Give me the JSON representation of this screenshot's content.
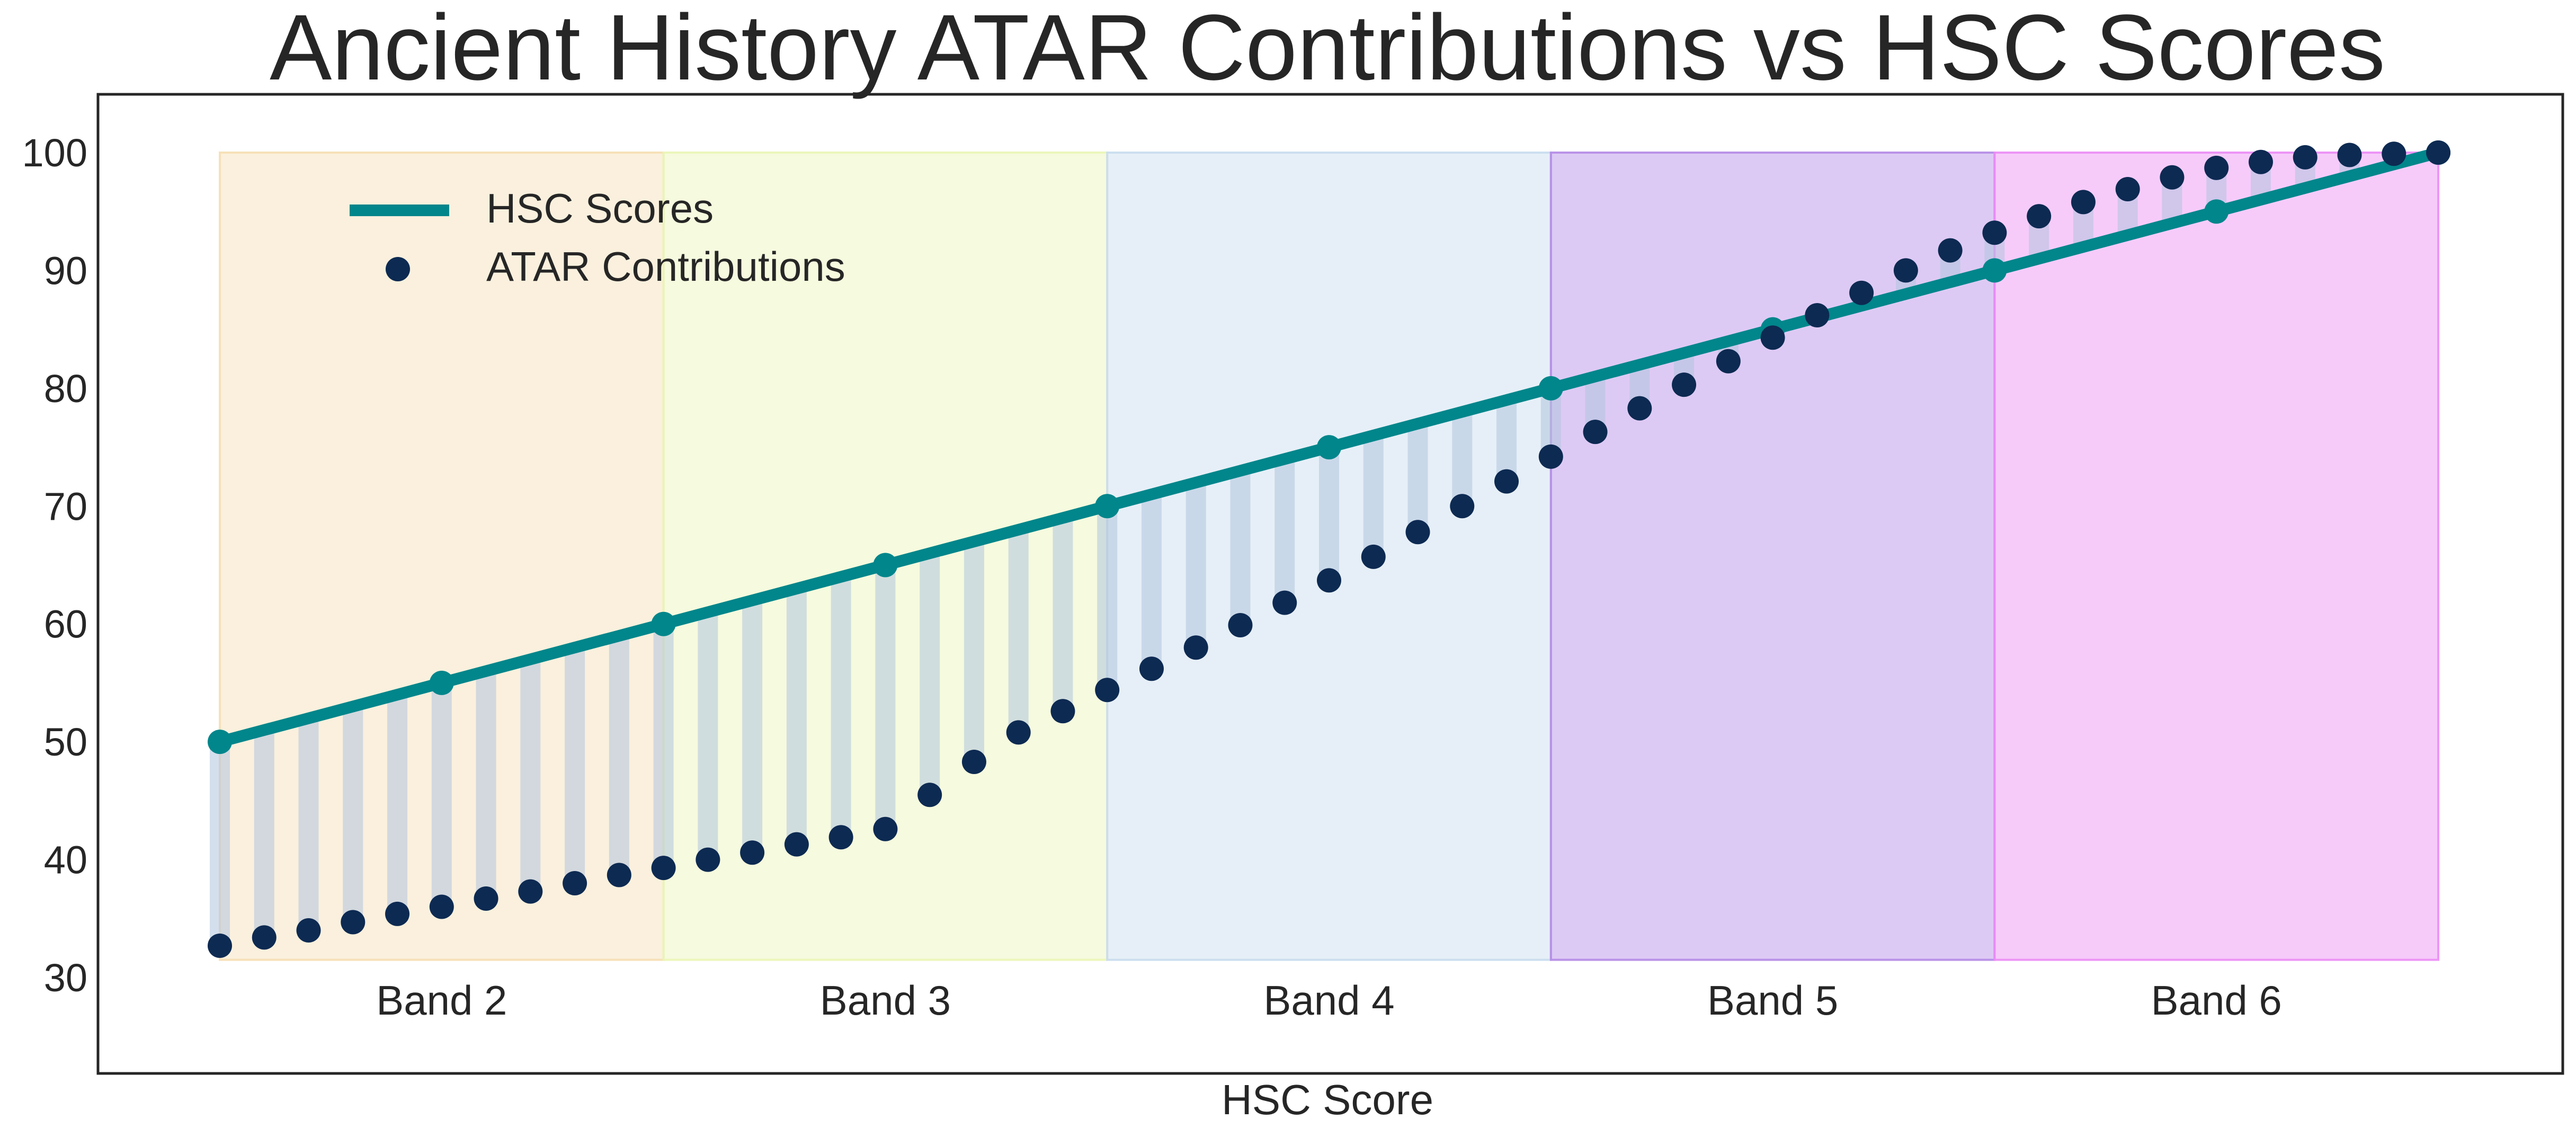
{
  "chart_data": {
    "type": "line",
    "title": "Ancient History ATAR Contributions vs HSC Scores",
    "xlabel": "HSC Score",
    "ylabel": "",
    "ylim": [
      22,
      105
    ],
    "yticks": [
      30,
      40,
      50,
      60,
      70,
      80,
      90,
      100
    ],
    "grid": false,
    "legend_position": "top-left",
    "bands": [
      {
        "label": "Band 2",
        "from": 50,
        "to": 60,
        "color": "#f5deb3"
      },
      {
        "label": "Band 3",
        "from": 60,
        "to": 70,
        "color": "#eaf5b5"
      },
      {
        "label": "Band 4",
        "from": 70,
        "to": 80,
        "color": "#c8dcee"
      },
      {
        "label": "Band 5",
        "from": 80,
        "to": 90,
        "color": "#b48ae6"
      },
      {
        "label": "Band 6",
        "from": 90,
        "to": 100,
        "color": "#ec8cf5"
      }
    ],
    "series": [
      {
        "name": "HSC Scores",
        "style": "line-with-markers",
        "color": "#00868b",
        "x": [
          50,
          55,
          60,
          65,
          70,
          75,
          80,
          85,
          90,
          95,
          100
        ],
        "values": [
          50,
          55,
          60,
          65,
          70,
          75,
          80,
          85,
          90,
          95,
          100
        ]
      },
      {
        "name": "ATAR Contributions",
        "style": "scatter",
        "color": "#0d2a52",
        "x": [
          50,
          51,
          52,
          53,
          54,
          55,
          56,
          57,
          58,
          59,
          60,
          61,
          62,
          63,
          64,
          65,
          66,
          67,
          68,
          69,
          70,
          71,
          72,
          73,
          74,
          75,
          76,
          77,
          78,
          79,
          80,
          81,
          82,
          83,
          84,
          85,
          86,
          87,
          88,
          89,
          90,
          91,
          92,
          93,
          94,
          95,
          96,
          97,
          98,
          99,
          100
        ],
        "values": [
          32.7,
          33.4,
          34.0,
          34.7,
          35.4,
          36.0,
          36.7,
          37.3,
          38.0,
          38.7,
          39.3,
          40.0,
          40.6,
          41.3,
          41.9,
          42.6,
          45.5,
          48.3,
          50.8,
          52.6,
          54.4,
          56.2,
          58.0,
          59.9,
          61.8,
          63.7,
          65.7,
          67.8,
          70.0,
          72.1,
          74.2,
          76.3,
          78.3,
          80.3,
          82.3,
          84.3,
          86.2,
          88.1,
          90.0,
          91.7,
          93.2,
          94.6,
          95.8,
          96.9,
          97.9,
          98.7,
          99.2,
          99.6,
          99.8,
          99.9,
          100.0
        ]
      }
    ],
    "connector_color": "#b0c4de"
  }
}
